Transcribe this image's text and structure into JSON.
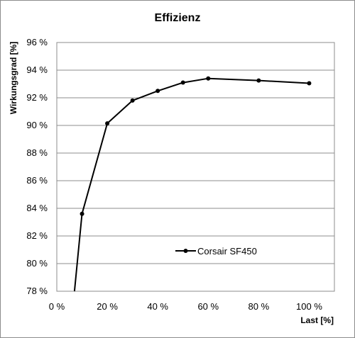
{
  "chart_data": {
    "type": "line",
    "title": "Effizienz",
    "xlabel": "Last [%]",
    "ylabel": "Wirkungsgrad [%]",
    "xlim": [
      0,
      110
    ],
    "ylim": [
      78,
      96
    ],
    "x_ticks": [
      0,
      20,
      40,
      60,
      80,
      100
    ],
    "x_tick_labels": [
      "0 %",
      "20 %",
      "40 %",
      "60 %",
      "80 %",
      "100 %"
    ],
    "y_ticks": [
      78,
      80,
      82,
      84,
      86,
      88,
      90,
      92,
      94,
      96
    ],
    "y_tick_labels": [
      "78 %",
      "80 %",
      "82 %",
      "84 %",
      "86 %",
      "88 %",
      "90 %",
      "92 %",
      "94 %",
      "96 %"
    ],
    "grid": "horizontal",
    "legend": "center-right",
    "series": [
      {
        "name": "Corsair SF450",
        "color": "#000000",
        "x": [
          7,
          10,
          20,
          30,
          40,
          50,
          60,
          80,
          100
        ],
        "y": [
          78.0,
          83.6,
          90.15,
          91.8,
          92.5,
          93.1,
          93.4,
          93.25,
          93.05
        ],
        "marker_from_index": 1
      }
    ]
  }
}
